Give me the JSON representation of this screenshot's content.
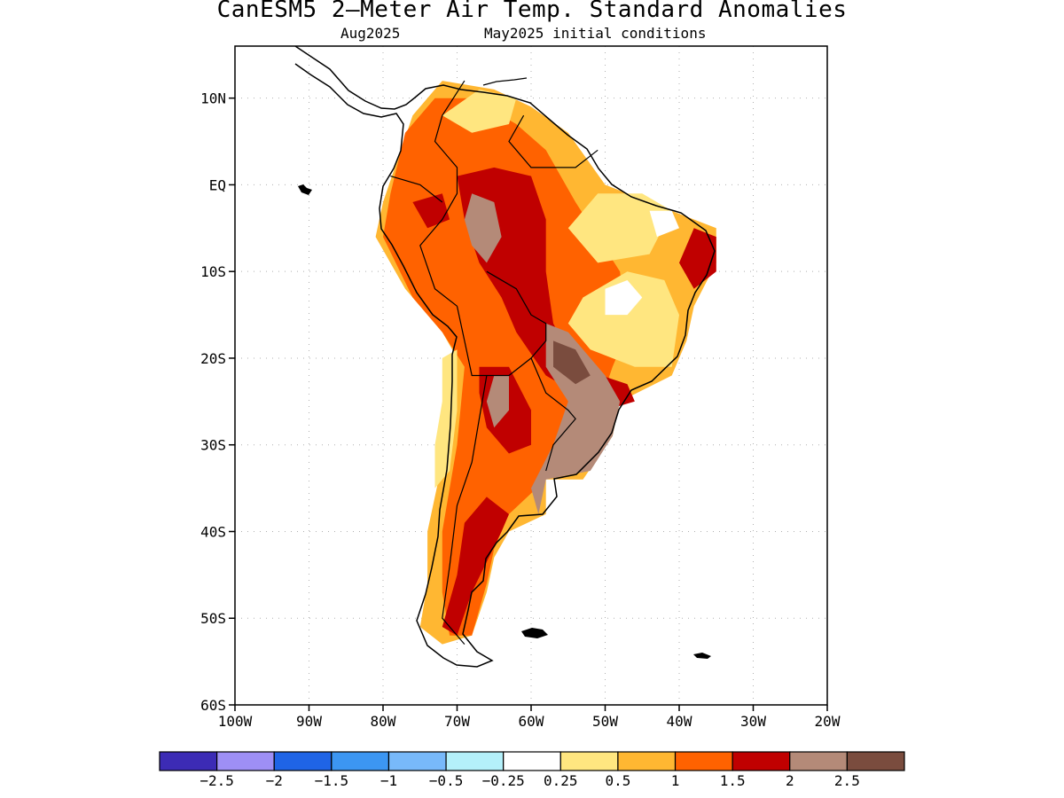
{
  "title": "CanESM5 2—Meter Air Temp. Standard Anomalies",
  "subtitle_left": "Aug2025",
  "subtitle_right": "May2025 initial conditions",
  "map": {
    "lon_range": [
      -100,
      -20
    ],
    "lat_range": [
      -60,
      16
    ],
    "x_ticks": [
      {
        "lon": -100,
        "label": "100W"
      },
      {
        "lon": -90,
        "label": "90W"
      },
      {
        "lon": -80,
        "label": "80W"
      },
      {
        "lon": -70,
        "label": "70W"
      },
      {
        "lon": -60,
        "label": "60W"
      },
      {
        "lon": -50,
        "label": "50W"
      },
      {
        "lon": -40,
        "label": "40W"
      },
      {
        "lon": -30,
        "label": "30W"
      },
      {
        "lon": -20,
        "label": "20W"
      }
    ],
    "y_ticks": [
      {
        "lat": 10,
        "label": "10N"
      },
      {
        "lat": 0,
        "label": "EQ"
      },
      {
        "lat": -10,
        "label": "10S"
      },
      {
        "lat": -20,
        "label": "20S"
      },
      {
        "lat": -30,
        "label": "30S"
      },
      {
        "lat": -40,
        "label": "40S"
      },
      {
        "lat": -50,
        "label": "50S"
      },
      {
        "lat": -60,
        "label": "60S"
      }
    ],
    "grid": "dotted",
    "anomaly_regions": [
      {
        "level": 1,
        "color": "#ffb732",
        "points": [
          [
            -80,
            -2
          ],
          [
            -78,
            3
          ],
          [
            -76,
            8
          ],
          [
            -72,
            12
          ],
          [
            -65,
            11
          ],
          [
            -60,
            9
          ],
          [
            -55,
            6
          ],
          [
            -50,
            0
          ],
          [
            -44,
            -2
          ],
          [
            -35,
            -5
          ],
          [
            -35,
            -9
          ],
          [
            -38,
            -14
          ],
          [
            -39,
            -18
          ],
          [
            -41,
            -22
          ],
          [
            -48,
            -25
          ],
          [
            -49,
            -29
          ],
          [
            -53,
            -34
          ],
          [
            -58,
            -34
          ],
          [
            -58,
            -38
          ],
          [
            -63,
            -40
          ],
          [
            -65,
            -43
          ],
          [
            -66,
            -47
          ],
          [
            -68,
            -52
          ],
          [
            -72,
            -53
          ],
          [
            -75,
            -51
          ],
          [
            -74,
            -46
          ],
          [
            -74,
            -40
          ],
          [
            -72,
            -32
          ],
          [
            -70,
            -20
          ],
          [
            -72,
            -17
          ],
          [
            -77,
            -12
          ],
          [
            -81,
            -6
          ]
        ]
      },
      {
        "level": 1.5,
        "color": "#ff6200",
        "points": [
          [
            -79,
            -1
          ],
          [
            -77,
            6
          ],
          [
            -73,
            10
          ],
          [
            -68,
            10
          ],
          [
            -62,
            7
          ],
          [
            -58,
            4
          ],
          [
            -54,
            -2
          ],
          [
            -48,
            -10
          ],
          [
            -47,
            -17
          ],
          [
            -49,
            -21
          ],
          [
            -51,
            -26
          ],
          [
            -54,
            -31
          ],
          [
            -58,
            -34
          ],
          [
            -63,
            -38
          ],
          [
            -65,
            -42
          ],
          [
            -66,
            -46
          ],
          [
            -68,
            -52
          ],
          [
            -71,
            -52
          ],
          [
            -72,
            -47
          ],
          [
            -72,
            -40
          ],
          [
            -70,
            -30
          ],
          [
            -69,
            -21
          ],
          [
            -72,
            -17
          ],
          [
            -76,
            -13
          ],
          [
            -80,
            -6
          ]
        ]
      },
      {
        "level": 0.5,
        "color": "#ffe680",
        "points": [
          [
            -51,
            -1
          ],
          [
            -45,
            -1
          ],
          [
            -41,
            -3
          ],
          [
            -44,
            -8
          ],
          [
            -51,
            -9
          ],
          [
            -55,
            -5
          ]
        ]
      },
      {
        "level": 0.5,
        "color": "#ffe680",
        "points": [
          [
            -53,
            -13
          ],
          [
            -47,
            -10
          ],
          [
            -42,
            -11
          ],
          [
            -40,
            -15
          ],
          [
            -41,
            -21
          ],
          [
            -46,
            -21
          ],
          [
            -52,
            -19
          ],
          [
            -55,
            -16
          ]
        ]
      },
      {
        "level": 0.25,
        "color": "#ffffff",
        "points": [
          [
            -50,
            -12
          ],
          [
            -47,
            -11
          ],
          [
            -45,
            -13
          ],
          [
            -47,
            -15
          ],
          [
            -50,
            -15
          ]
        ]
      },
      {
        "level": 0.25,
        "color": "#ffffff",
        "points": [
          [
            -44,
            -3
          ],
          [
            -41,
            -3
          ],
          [
            -40,
            -5
          ],
          [
            -43,
            -6
          ]
        ]
      },
      {
        "level": 0.5,
        "color": "#ffe680",
        "points": [
          [
            -72,
            -20
          ],
          [
            -70,
            -19
          ],
          [
            -70,
            -26
          ],
          [
            -71,
            -33
          ],
          [
            -73,
            -35
          ],
          [
            -73,
            -30
          ],
          [
            -72,
            -25
          ]
        ]
      },
      {
        "level": 0.5,
        "color": "#ffe680",
        "points": [
          [
            -72,
            8
          ],
          [
            -67,
            11
          ],
          [
            -62,
            10
          ],
          [
            -63,
            7
          ],
          [
            -68,
            6
          ]
        ]
      },
      {
        "level": 2,
        "color": "#c00000",
        "points": [
          [
            -70,
            1
          ],
          [
            -65,
            2
          ],
          [
            -60,
            1
          ],
          [
            -58,
            -4
          ],
          [
            -58,
            -10
          ],
          [
            -57,
            -16
          ],
          [
            -54,
            -21
          ],
          [
            -47,
            -23
          ],
          [
            -46,
            -25
          ],
          [
            -50,
            -26
          ],
          [
            -58,
            -22
          ],
          [
            -62,
            -17
          ],
          [
            -64,
            -13
          ],
          [
            -67,
            -9
          ],
          [
            -69,
            -4
          ]
        ]
      },
      {
        "level": 2,
        "color": "#c00000",
        "points": [
          [
            -38,
            -5
          ],
          [
            -35,
            -6
          ],
          [
            -35,
            -10
          ],
          [
            -38,
            -12
          ],
          [
            -40,
            -9
          ]
        ]
      },
      {
        "level": 2,
        "color": "#c00000",
        "points": [
          [
            -67,
            -21
          ],
          [
            -63,
            -21
          ],
          [
            -60,
            -26
          ],
          [
            -60,
            -30
          ],
          [
            -63,
            -31
          ],
          [
            -66,
            -28
          ],
          [
            -67,
            -24
          ]
        ]
      },
      {
        "level": 2,
        "color": "#c00000",
        "points": [
          [
            -66,
            -36
          ],
          [
            -63,
            -38
          ],
          [
            -64,
            -40
          ],
          [
            -68,
            -47
          ],
          [
            -70,
            -52
          ],
          [
            -72,
            -51
          ],
          [
            -70,
            -45
          ],
          [
            -69,
            -39
          ]
        ]
      },
      {
        "level": 2,
        "color": "#c00000",
        "points": [
          [
            -76,
            -2
          ],
          [
            -72,
            -1
          ],
          [
            -71,
            -4
          ],
          [
            -74,
            -5
          ]
        ]
      },
      {
        "level": 2.5,
        "color": "#b48a78",
        "points": [
          [
            -68,
            -1
          ],
          [
            -65,
            -2
          ],
          [
            -64,
            -6
          ],
          [
            -66,
            -9
          ],
          [
            -68,
            -7
          ],
          [
            -69,
            -4
          ]
        ]
      },
      {
        "level": 2.5,
        "color": "#b48a78",
        "points": [
          [
            -58,
            -16
          ],
          [
            -55,
            -17
          ],
          [
            -50,
            -22
          ],
          [
            -48,
            -25
          ],
          [
            -49,
            -29
          ],
          [
            -52,
            -33
          ],
          [
            -58,
            -34
          ],
          [
            -59,
            -38
          ],
          [
            -60,
            -35
          ],
          [
            -57,
            -30
          ],
          [
            -55,
            -25
          ],
          [
            -58,
            -21
          ]
        ]
      },
      {
        "level": 2.5,
        "color": "#b48a78",
        "points": [
          [
            -65,
            -22
          ],
          [
            -63,
            -22
          ],
          [
            -63,
            -26
          ],
          [
            -65,
            -28
          ],
          [
            -66,
            -25
          ]
        ]
      },
      {
        "level": 3,
        "color": "#7a4c3e",
        "points": [
          [
            -57,
            -18
          ],
          [
            -54,
            -19
          ],
          [
            -52,
            -22
          ],
          [
            -54,
            -23
          ],
          [
            -57,
            -21
          ]
        ]
      }
    ],
    "country_borders": [
      [
        [
          -69,
          12
        ],
        [
          -72,
          8
        ],
        [
          -73,
          5
        ],
        [
          -70,
          2
        ],
        [
          -70,
          -1
        ],
        [
          -72,
          -4
        ],
        [
          -75,
          -7
        ],
        [
          -73,
          -12
        ],
        [
          -70,
          -14
        ]
      ],
      [
        [
          -79,
          1
        ],
        [
          -75,
          0
        ],
        [
          -72,
          -2
        ]
      ],
      [
        [
          -70,
          -14
        ],
        [
          -69,
          -18
        ],
        [
          -68,
          -22
        ],
        [
          -66,
          -22
        ],
        [
          -63,
          -22
        ],
        [
          -60,
          -20
        ],
        [
          -58,
          -18
        ],
        [
          -58,
          -16
        ],
        [
          -60,
          -15
        ],
        [
          -62,
          -12
        ],
        [
          -66,
          -10
        ]
      ],
      [
        [
          -66,
          -22
        ],
        [
          -67,
          -27
        ],
        [
          -68,
          -32
        ],
        [
          -70,
          -37
        ],
        [
          -71,
          -44
        ],
        [
          -72,
          -50
        ],
        [
          -69,
          -53
        ]
      ],
      [
        [
          -60,
          -20
        ],
        [
          -58,
          -24
        ],
        [
          -55,
          -26
        ],
        [
          -54,
          -27
        ],
        [
          -57,
          -30
        ],
        [
          -58,
          -33
        ]
      ],
      [
        [
          -61,
          8
        ],
        [
          -63,
          5
        ],
        [
          -60,
          2
        ],
        [
          -57,
          2
        ],
        [
          -54,
          2
        ],
        [
          -51,
          4
        ]
      ]
    ]
  },
  "colorbar": {
    "colors": [
      "#3c2bb5",
      "#9e8ff5",
      "#1f64e6",
      "#3c96f2",
      "#78b9fa",
      "#b4f0fa",
      "#ffffff",
      "#ffe680",
      "#ffb732",
      "#ff6200",
      "#c00000",
      "#b48a78",
      "#7a4c3e"
    ],
    "labels": [
      "−2.5",
      "−2",
      "−1.5",
      "−1",
      "−0.5",
      "−0.25",
      "0.25",
      "0.5",
      "1",
      "1.5",
      "2",
      "2.5"
    ]
  }
}
